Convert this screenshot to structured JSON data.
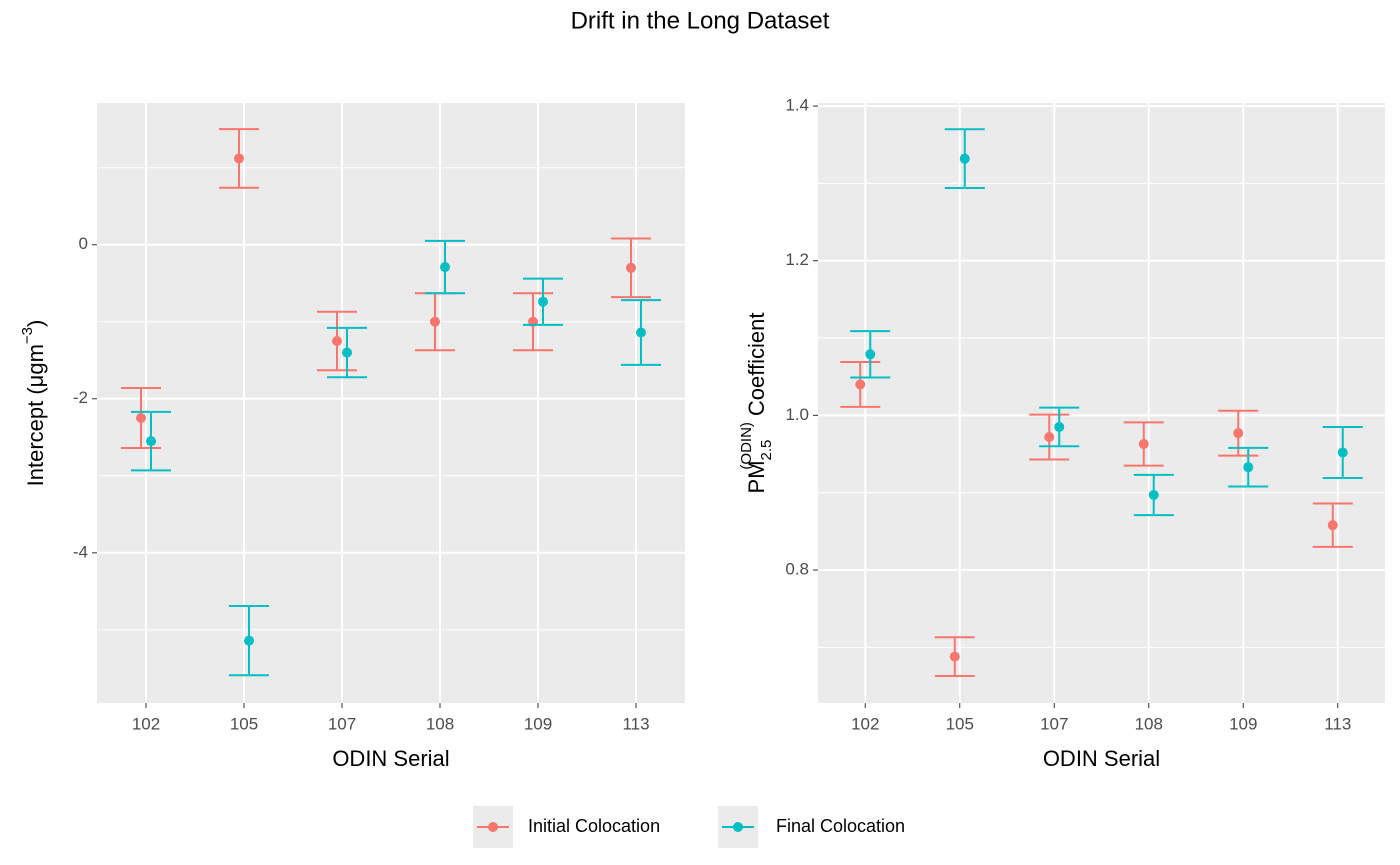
{
  "title": "Drift in the Long Dataset",
  "legend_position": "bottom",
  "chart_data": [
    {
      "type": "errorbar",
      "xlabel": "ODIN Serial",
      "ylabel": {
        "text": "Intercept (μgm",
        "sup": "−3",
        "close": ")"
      },
      "categories": [
        "102",
        "105",
        "107",
        "108",
        "109",
        "113"
      ],
      "ylim": [
        -5.95,
        1.84
      ],
      "yticks": [
        -4,
        -2,
        0
      ],
      "yminor": [
        -5,
        -3,
        -1,
        1
      ],
      "grid": true,
      "series": [
        {
          "name": "Initial Colocation",
          "color": "#F8766D",
          "values": [
            -2.25,
            1.12,
            -1.25,
            -1.0,
            -1.0,
            -0.3
          ],
          "errors": [
            0.39,
            0.38,
            0.38,
            0.37,
            0.37,
            0.38
          ]
        },
        {
          "name": "Final Colocation",
          "color": "#00BFC4",
          "values": [
            -2.55,
            -5.14,
            -1.4,
            -0.29,
            -0.74,
            -1.14
          ],
          "errors": [
            0.38,
            0.45,
            0.32,
            0.34,
            0.3,
            0.42
          ]
        }
      ]
    },
    {
      "type": "errorbar",
      "xlabel": "ODIN Serial",
      "ylabel": {
        "base": "PM",
        "sub": "2.5",
        "sup": "(ODIN)",
        "rest": "Coefficient"
      },
      "categories": [
        "102",
        "105",
        "107",
        "108",
        "109",
        "113"
      ],
      "ylim": [
        0.628,
        1.404
      ],
      "yticks": [
        {
          "value": 0.8,
          "label": "0.8"
        },
        {
          "value": 1.0,
          "label": "1.0"
        },
        {
          "value": 1.2,
          "label": "1.2"
        },
        {
          "value": 1.4,
          "label": "1.4"
        }
      ],
      "yminor": [
        0.7,
        0.9,
        1.1,
        1.3
      ],
      "grid": true,
      "series": [
        {
          "name": "Initial Colocation",
          "color": "#F8766D",
          "values": [
            1.04,
            0.688,
            0.972,
            0.963,
            0.977,
            0.858
          ],
          "errors": [
            0.029,
            0.025,
            0.029,
            0.028,
            0.029,
            0.028
          ]
        },
        {
          "name": "Final Colocation",
          "color": "#00BFC4",
          "values": [
            1.079,
            1.332,
            0.985,
            0.897,
            0.933,
            0.952
          ],
          "errors": [
            0.03,
            0.038,
            0.025,
            0.026,
            0.025,
            0.033
          ]
        }
      ]
    }
  ]
}
